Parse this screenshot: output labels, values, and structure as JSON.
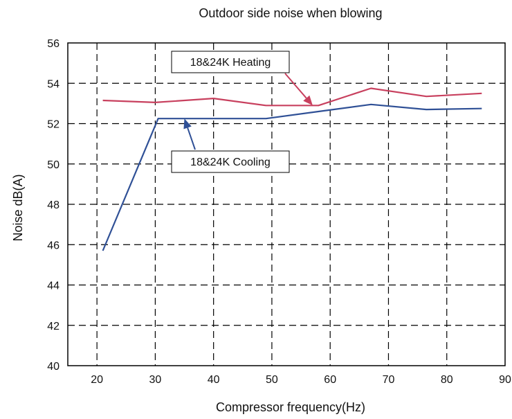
{
  "chart_data": {
    "type": "line",
    "title": "Outdoor side noise when blowing",
    "xlabel": "Compressor frequency(Hz)",
    "ylabel": "Noise dB(A)",
    "xlim": [
      15,
      90
    ],
    "ylim": [
      40,
      56
    ],
    "xticks": [
      20,
      30,
      40,
      50,
      60,
      70,
      80,
      90
    ],
    "yticks": [
      40,
      42,
      44,
      46,
      48,
      50,
      52,
      54,
      56
    ],
    "grid": true,
    "series": [
      {
        "name": "18&24K Heating",
        "color": "#c8405e",
        "x": [
          21,
          30,
          40,
          49,
          58,
          67,
          76.5,
          86
        ],
        "y": [
          53.15,
          53.05,
          53.25,
          52.9,
          52.9,
          53.75,
          53.35,
          53.5
        ]
      },
      {
        "name": "18&24K Cooling",
        "color": "#2f5096",
        "x": [
          21,
          30.5,
          40,
          49,
          58,
          67,
          76.5,
          86
        ],
        "y": [
          45.7,
          52.25,
          52.25,
          52.25,
          52.6,
          52.95,
          52.7,
          52.75
        ]
      }
    ],
    "annotations": [
      {
        "text": "18&24K Heating",
        "series": 0,
        "target": [
          57,
          52.9
        ]
      },
      {
        "text": "18&24K Cooling",
        "series": 1,
        "target": [
          35,
          52.25
        ]
      }
    ]
  }
}
